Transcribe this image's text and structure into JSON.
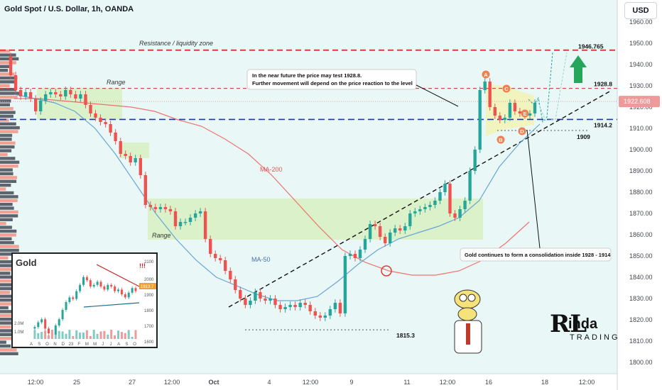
{
  "header": {
    "symbol_title": "Gold Spot / U.S. Dollar, 1h, OANDA",
    "currency_button": "USD"
  },
  "colors": {
    "background": "#e9f7f7",
    "candle_up": "#26a69a",
    "candle_down": "#ef5350",
    "ma200": "#ef5350",
    "ma50": "#5b9bd5",
    "resistance": "#e53935",
    "support": "#1f3a93",
    "range_fill": "#d8f0c2",
    "price_tag": "#ef9a9a",
    "arrow_green": "#26a65b"
  },
  "chart_data": {
    "type": "candlestick",
    "title": "Gold Spot / U.S. Dollar, 1h, OANDA",
    "y_ticks": [
      1800,
      1810,
      1820,
      1830,
      1840,
      1850,
      1860,
      1870,
      1880,
      1890,
      1900,
      1910,
      1920,
      1930,
      1940,
      1950,
      1960
    ],
    "ylim": [
      1796,
      1965
    ],
    "x_ticks": [
      "12:00",
      "25",
      "27",
      "12:00",
      "Oct",
      "4",
      "12:00",
      "9",
      "11",
      "12:00",
      "16",
      "18",
      "12:00"
    ],
    "current_price": "1922.608",
    "series": [
      {
        "name": "price",
        "values": [
          1944,
          1935,
          1928,
          1925,
          1927,
          1924,
          1918,
          1923,
          1926,
          1927,
          1926,
          1925,
          1928,
          1926,
          1924,
          1926,
          1921,
          1917,
          1915,
          1913,
          1912,
          1908,
          1904,
          1898,
          1897,
          1894,
          1896,
          1888,
          1874,
          1873,
          1872,
          1873,
          1872,
          1871,
          1864,
          1866,
          1866,
          1868,
          1870,
          1871,
          1858,
          1851,
          1849,
          1848,
          1843,
          1839,
          1834,
          1830,
          1827,
          1829,
          1833,
          1830,
          1829,
          1830,
          1827,
          1825,
          1826,
          1827,
          1826,
          1828,
          1827,
          1824,
          1822,
          1821,
          1822,
          1825,
          1828,
          1823,
          1850,
          1851,
          1849,
          1853,
          1858,
          1865,
          1864,
          1859,
          1856,
          1861,
          1863,
          1862,
          1864,
          1870,
          1871,
          1872,
          1873,
          1874,
          1876,
          1880,
          1884,
          1870,
          1868,
          1872,
          1876,
          1890,
          1900,
          1928,
          1932,
          1920,
          1916,
          1914,
          1915,
          1922,
          1918,
          1917,
          1916,
          1917,
          1922
        ]
      },
      {
        "name": "MA-200",
        "values": [
          1924,
          1924,
          1923,
          1922,
          1921,
          1920,
          1918,
          1914,
          1911,
          1905,
          1898,
          1888,
          1876,
          1864,
          1853,
          1847,
          1843,
          1841,
          1841,
          1843,
          1848,
          1856,
          1866
        ]
      },
      {
        "name": "MA-50",
        "values": [
          1926,
          1924,
          1922,
          1918,
          1910,
          1898,
          1884,
          1870,
          1858,
          1848,
          1840,
          1836,
          1832,
          1829,
          1829,
          1831,
          1838,
          1846,
          1853,
          1858,
          1861,
          1864,
          1868,
          1876,
          1892,
          1903,
          1912
        ]
      }
    ],
    "levels": [
      {
        "label": "1946.765",
        "value": 1946.765,
        "style": "resistance"
      },
      {
        "label": "1928.8",
        "value": 1928.8,
        "style": "dashed"
      },
      {
        "label": "1914.2",
        "value": 1914.2,
        "style": "support"
      },
      {
        "label": "1909",
        "value": 1909,
        "style": "dotted"
      },
      {
        "label": "1815.3",
        "value": 1815.3,
        "style": "dotted"
      }
    ],
    "annotations": {
      "resistance_zone": "Resistance / liquidity zone",
      "range_upper": "Range",
      "range_lower": "Range",
      "ma200_label": "MA-200",
      "ma50_label": "MA-50",
      "callout_top_1": "In the near future the price may test 1928.8.",
      "callout_top_2": "Further movement will depend on the price reaction to the level",
      "callout_bottom": "Gold continues to form a consolidation inside 1928 - 1914",
      "wave_labels": [
        "A",
        "B",
        "C",
        "D",
        "E"
      ]
    }
  },
  "inset_chart": {
    "title": "Gold",
    "y_ticks": [
      "2100",
      "2000",
      "1900",
      "1800",
      "1700",
      "1600"
    ],
    "x_ticks": [
      "A",
      "S",
      "O",
      "N",
      "D",
      "23",
      "F",
      "M",
      "M",
      "J",
      "J",
      "A",
      "S",
      "O"
    ],
    "volume_ticks": [
      "2.0M",
      "1.0M"
    ],
    "marker": "!!!",
    "price_tag": "1913.7"
  },
  "logo": {
    "mark": "RL",
    "text_top": "inda",
    "text_bottom": "TRADING"
  }
}
